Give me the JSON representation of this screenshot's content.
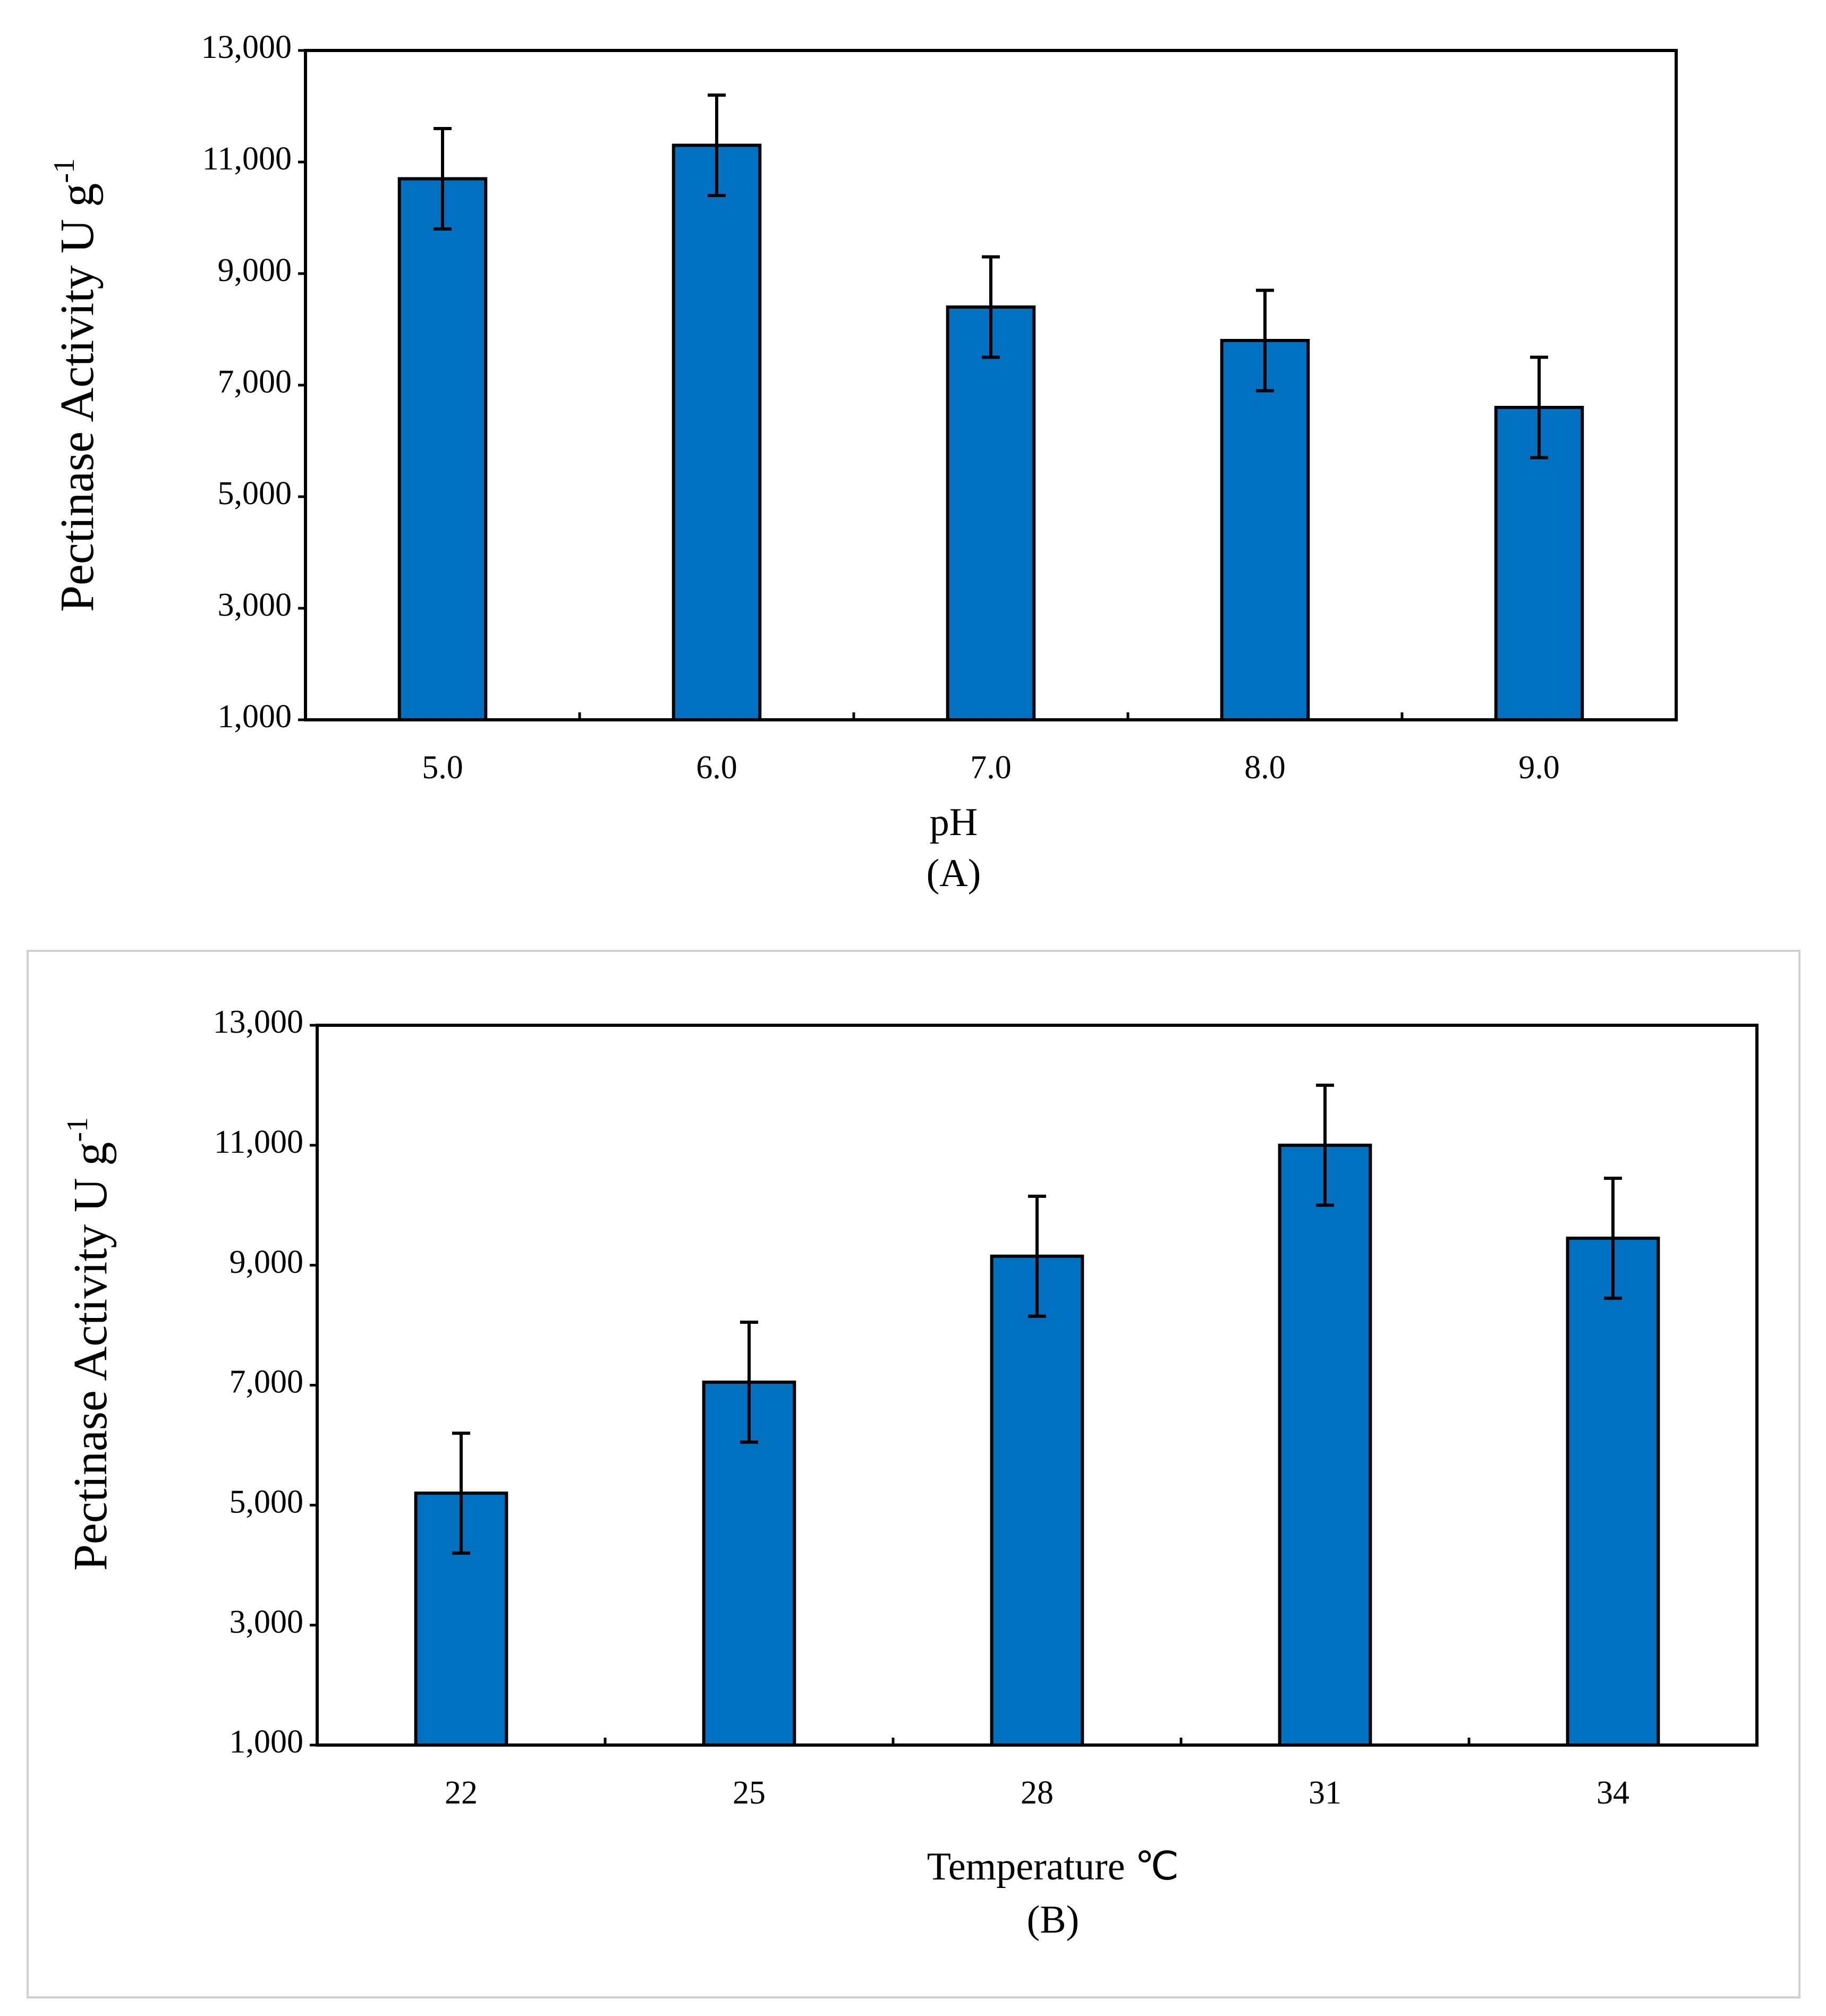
{
  "chart_data": [
    {
      "type": "bar",
      "categories": [
        "5.0",
        "6.0",
        "7.0",
        "8.0",
        "9.0"
      ],
      "values": [
        10700,
        11300,
        8400,
        7800,
        6600
      ],
      "errors": [
        900,
        900,
        900,
        900,
        900
      ],
      "ylim": [
        1000,
        13000
      ],
      "yticks": [
        "1,000",
        "3,000",
        "5,000",
        "7,000",
        "9,000",
        "11,000",
        "13,000"
      ],
      "xlabel": "pH",
      "ylabel": "Pectinase Activity U g",
      "ylabel_sup": "-1",
      "panel_label": "(A)",
      "bar_color": "#0070c0",
      "grid": false
    },
    {
      "type": "bar",
      "categories": [
        "22",
        "25",
        "28",
        "31",
        "34"
      ],
      "values": [
        5200,
        7050,
        9150,
        11000,
        9450
      ],
      "errors": [
        1000,
        1000,
        1000,
        1000,
        1000
      ],
      "ylim": [
        1000,
        13000
      ],
      "yticks": [
        "1,000",
        "3,000",
        "5,000",
        "7,000",
        "9,000",
        "11,000",
        "13,000"
      ],
      "xlabel": "Temperature ℃",
      "ylabel": "Pectinase Activity U g",
      "ylabel_sup": "-1",
      "panel_label": "(B)",
      "bar_color": "#0070c0",
      "grid": false
    }
  ]
}
